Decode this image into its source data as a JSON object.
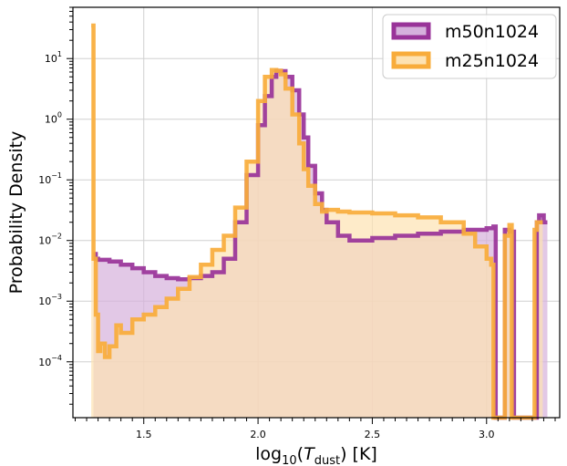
{
  "chart_data": {
    "type": "area",
    "xlabel": "log10(Tdust) [K]",
    "xlabel_parts": {
      "base": "log",
      "sub10": "10",
      "open": "(",
      "var": "T",
      "sub": "dust",
      "close": ") [K]"
    },
    "ylabel": "Probability Density",
    "x_scale": "linear",
    "y_scale": "log",
    "xlim": [
      1.19,
      3.32
    ],
    "ylim": [
      1.2e-05,
      70
    ],
    "xticks": [
      {
        "value": 1.5,
        "label": "1.5"
      },
      {
        "value": 2.0,
        "label": "2.0"
      },
      {
        "value": 2.5,
        "label": "2.5"
      },
      {
        "value": 3.0,
        "label": "3.0"
      }
    ],
    "yticks": [
      {
        "value": 0.0001,
        "base": "10",
        "exp": "−4"
      },
      {
        "value": 0.001,
        "base": "10",
        "exp": "−3"
      },
      {
        "value": 0.01,
        "base": "10",
        "exp": "−2"
      },
      {
        "value": 0.1,
        "base": "10",
        "exp": "−1"
      },
      {
        "value": 1,
        "base": "10",
        "exp": "0"
      },
      {
        "value": 10,
        "base": "10",
        "exp": "1"
      }
    ],
    "grid": true,
    "legend_position": "top-right",
    "series": [
      {
        "name": "m50n1024",
        "color": "#993399",
        "fill_color": "#d5b0dc",
        "x": [
          1.28,
          1.29,
          1.3,
          1.35,
          1.4,
          1.45,
          1.5,
          1.55,
          1.6,
          1.65,
          1.7,
          1.75,
          1.8,
          1.85,
          1.9,
          1.95,
          2.0,
          2.03,
          2.06,
          2.08,
          2.1,
          2.12,
          2.15,
          2.18,
          2.2,
          2.22,
          2.25,
          2.28,
          2.3,
          2.35,
          2.4,
          2.5,
          2.6,
          2.7,
          2.8,
          2.9,
          3.0,
          3.03,
          3.04,
          3.05,
          3.08,
          3.1,
          3.12,
          3.2,
          3.22,
          3.23,
          3.24,
          3.25
        ],
        "y": [
          0.006,
          0.005,
          0.0048,
          0.0045,
          0.004,
          0.0035,
          0.003,
          0.0026,
          0.0024,
          0.0023,
          0.0024,
          0.0026,
          0.003,
          0.005,
          0.02,
          0.12,
          0.8,
          2.4,
          5,
          6.3,
          6.2,
          5,
          3,
          1.2,
          0.5,
          0.17,
          0.06,
          0.032,
          0.02,
          0.012,
          0.01,
          0.011,
          0.012,
          0.013,
          0.014,
          0.015,
          0.016,
          0.017,
          1e-05,
          1e-05,
          0.015,
          0.014,
          1e-05,
          1e-05,
          0.02,
          0.026,
          0.026,
          0.02
        ]
      },
      {
        "name": "m25n1024",
        "color": "#f8ac3b",
        "fill_color": "#fde2b2",
        "x": [
          1.27,
          1.275,
          1.28,
          1.29,
          1.3,
          1.31,
          1.32,
          1.33,
          1.35,
          1.38,
          1.4,
          1.45,
          1.5,
          1.55,
          1.6,
          1.65,
          1.7,
          1.75,
          1.8,
          1.85,
          1.9,
          1.95,
          2.0,
          2.03,
          2.06,
          2.08,
          2.1,
          2.12,
          2.15,
          2.18,
          2.2,
          2.22,
          2.25,
          2.28,
          2.3,
          2.35,
          2.4,
          2.5,
          2.6,
          2.7,
          2.8,
          2.9,
          2.95,
          3.0,
          3.02,
          3.03,
          3.07,
          3.08,
          3.1,
          3.11,
          3.2,
          3.21,
          3.22,
          3.23
        ],
        "y": [
          35,
          35,
          0.005,
          0.0006,
          0.00015,
          0.0002,
          0.0002,
          0.00012,
          0.00018,
          0.0004,
          0.0003,
          0.0005,
          0.0006,
          0.0008,
          0.0011,
          0.0016,
          0.0025,
          0.004,
          0.007,
          0.012,
          0.035,
          0.2,
          2,
          5,
          6.5,
          6.3,
          5.5,
          3.2,
          1.2,
          0.4,
          0.15,
          0.08,
          0.04,
          0.03,
          0.032,
          0.03,
          0.029,
          0.028,
          0.026,
          0.024,
          0.02,
          0.013,
          0.008,
          0.005,
          0.004,
          1e-05,
          1e-05,
          0.012,
          0.018,
          1e-05,
          1e-05,
          0.015,
          0.02,
          0.02
        ]
      }
    ]
  }
}
